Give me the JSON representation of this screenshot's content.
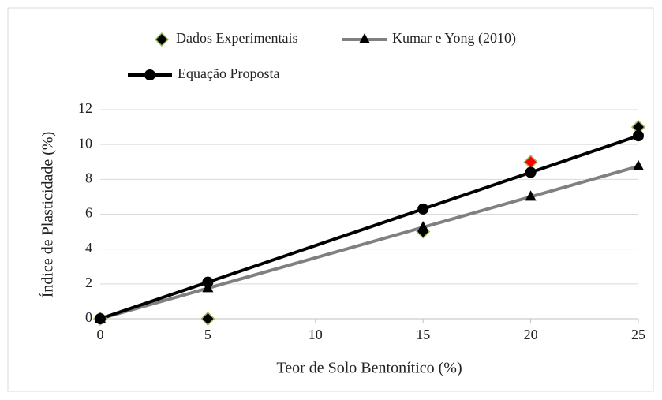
{
  "chart_data": {
    "type": "line",
    "x": [
      0,
      5,
      15,
      20,
      25
    ],
    "xlabel": "Teor de Solo Bentonítico (%)",
    "ylabel": "Índice de Plasticidade (%)",
    "xlim": [
      0,
      25
    ],
    "xticks": [
      0,
      5,
      10,
      15,
      20,
      25
    ],
    "ylim": [
      0,
      12
    ],
    "yticks": [
      0,
      2,
      4,
      6,
      8,
      10,
      12
    ],
    "grid": true,
    "series": [
      {
        "name": "Dados Experimentais",
        "marker": "diamond",
        "line": false,
        "color": "#000000",
        "edge_color": "#9bbb59",
        "marker_colors": [
          "#000000",
          "#000000",
          "#000000",
          "#ff0000",
          "#000000"
        ],
        "values": [
          0,
          0,
          5,
          9,
          11
        ]
      },
      {
        "name": "Kumar e Yong (2010)",
        "marker": "triangle",
        "line": true,
        "color": "#000000",
        "line_color": "#808080",
        "values": [
          0,
          1.75,
          5.25,
          7,
          8.75
        ]
      },
      {
        "name": "Equação Proposta",
        "marker": "circle",
        "line": true,
        "color": "#000000",
        "line_color": "#000000",
        "values": [
          0,
          2.1,
          6.3,
          8.4,
          10.5
        ]
      }
    ]
  }
}
